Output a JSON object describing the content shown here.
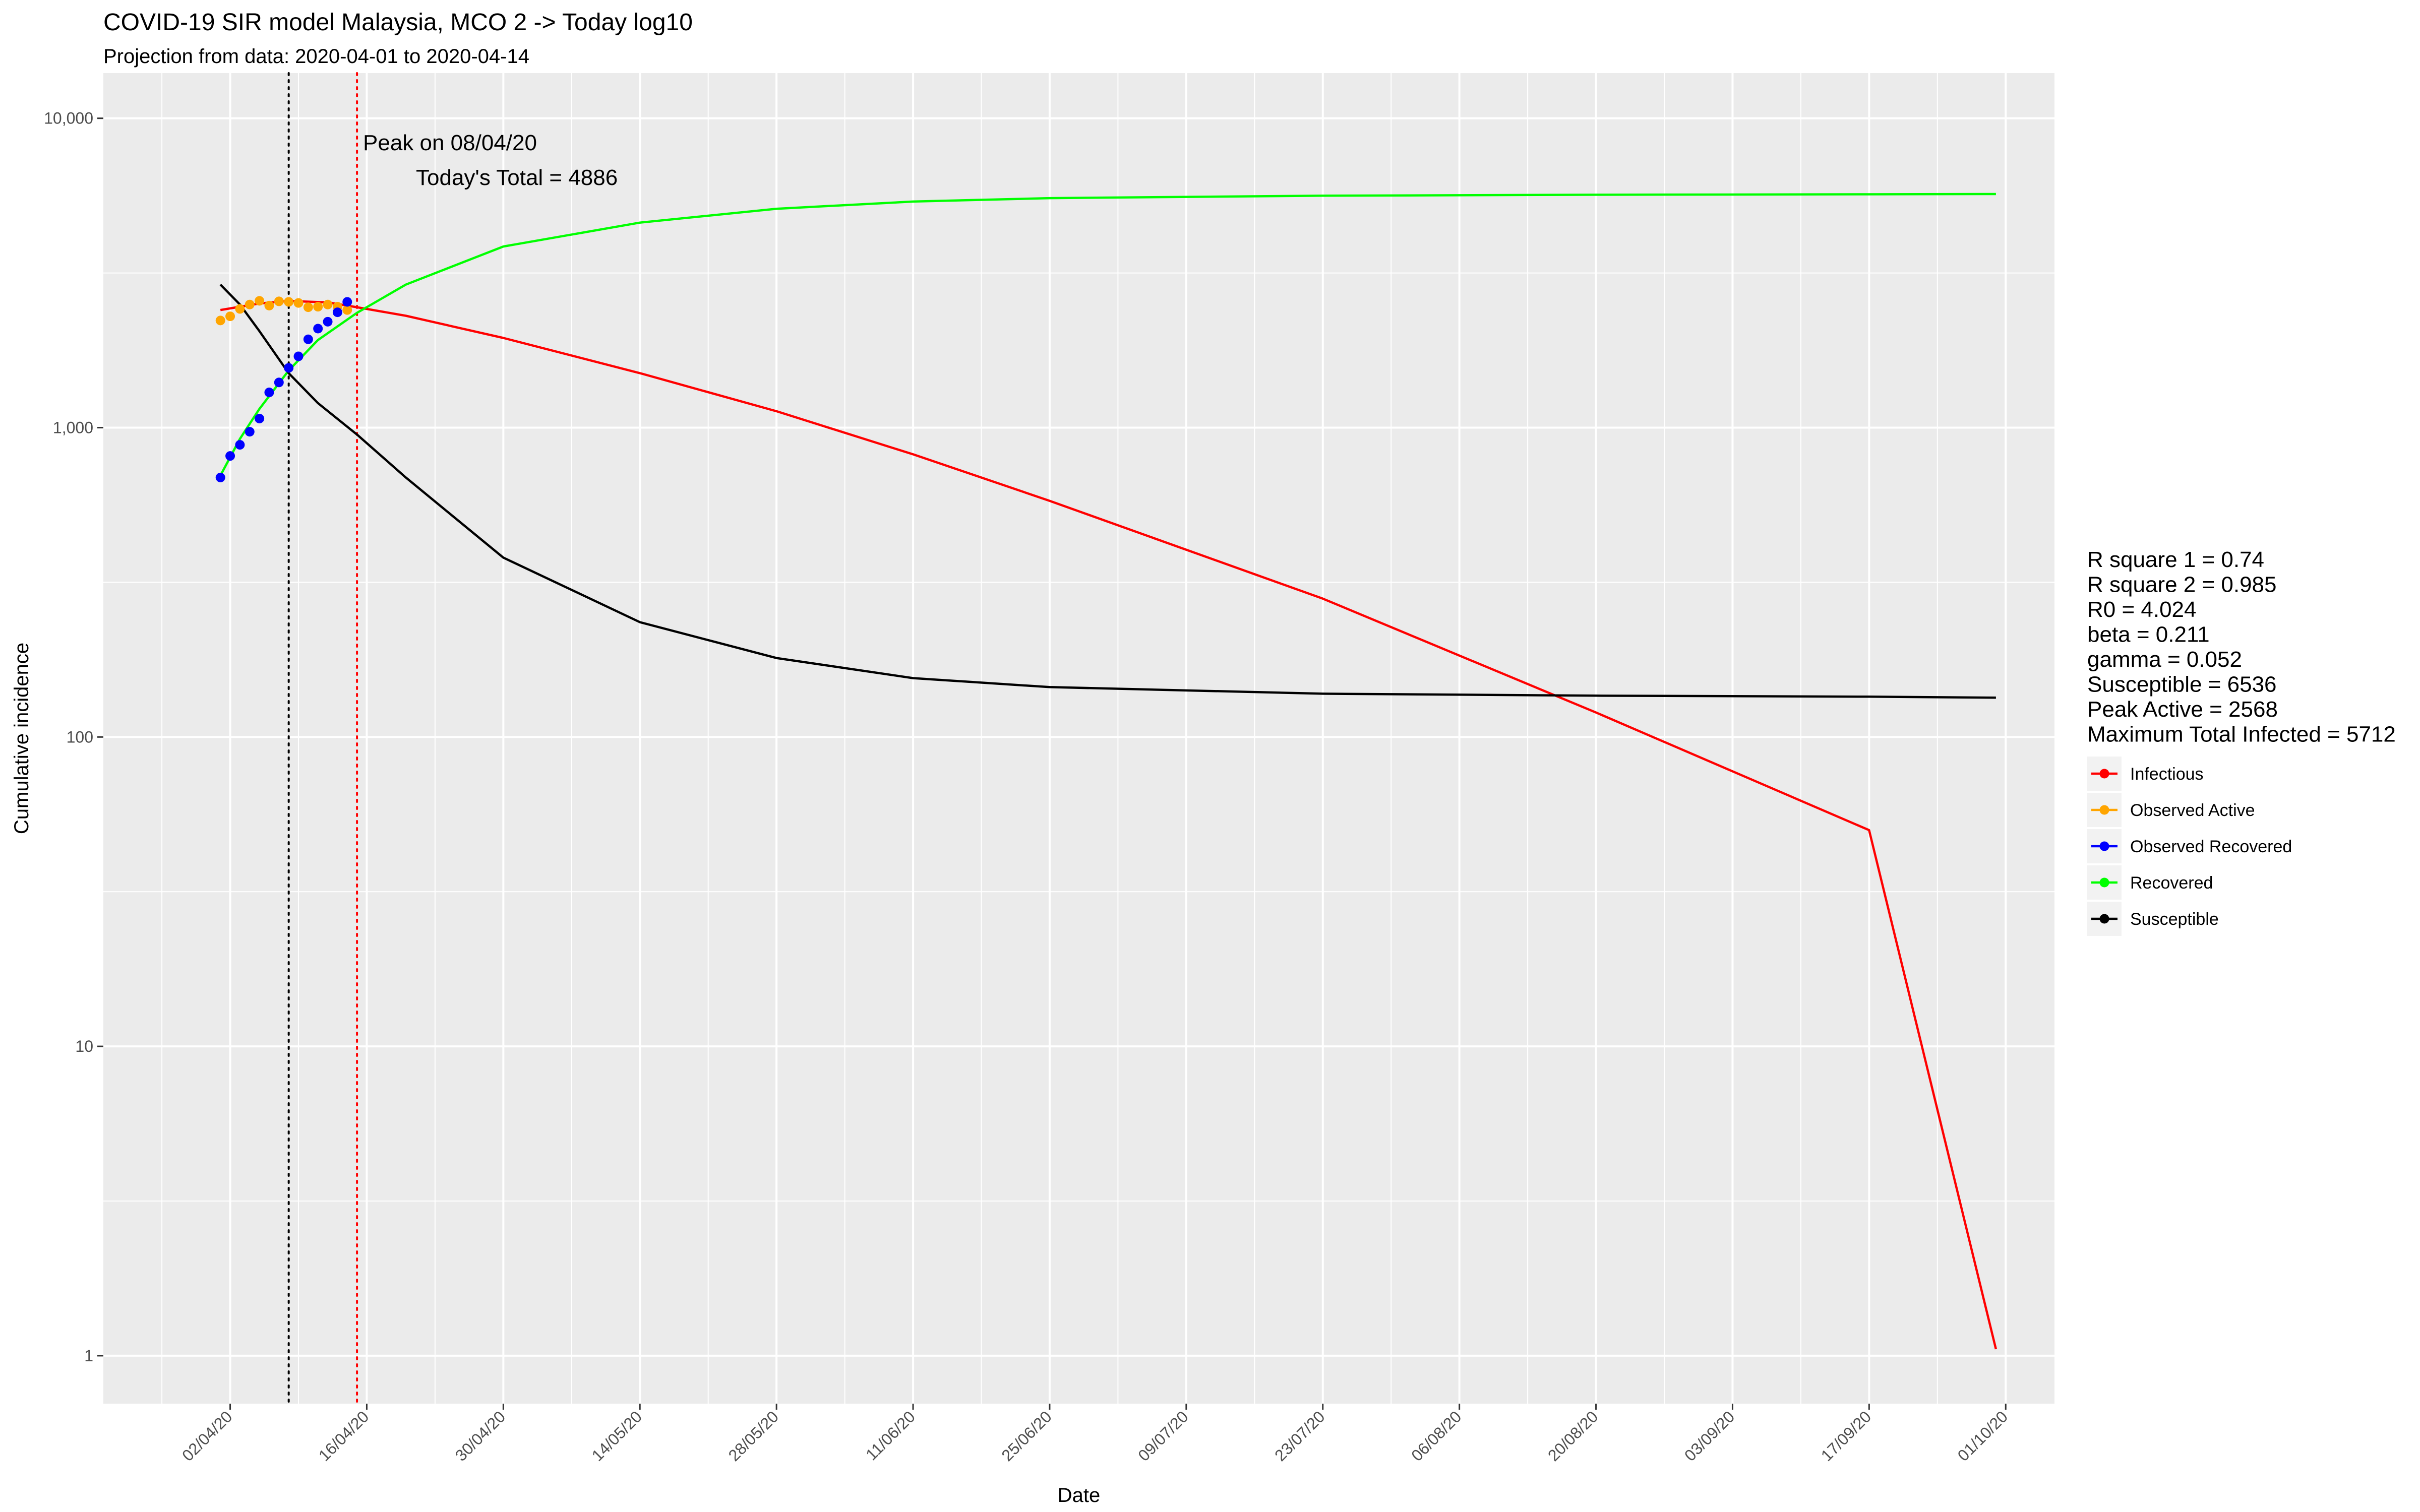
{
  "title": "COVID-19 SIR model Malaysia, MCO 2 -> Today log10",
  "subtitle": "Projection from data: 2020-04-01 to 2020-04-14",
  "annotations": {
    "peak": "Peak on 08/04/20",
    "today_total": "Today's Total = 4886"
  },
  "stats": [
    "R square 1 = 0.74",
    "R square 2 = 0.985",
    "R0 = 4.024",
    "beta = 0.211",
    "gamma = 0.052",
    "Susceptible = 6536",
    "Peak Active = 2568",
    "Maximum Total Infected = 5712"
  ],
  "chart_data": {
    "type": "line",
    "xlabel": "Date",
    "ylabel": "Cumulative incidence",
    "y_scale": "log10",
    "xlim": [
      "2020-03-20",
      "2020-10-06"
    ],
    "ylim": [
      0.7,
      14000
    ],
    "grid": true,
    "legend_position": "right",
    "x_ticks": [
      "2020-04-02",
      "2020-04-16",
      "2020-04-30",
      "2020-05-14",
      "2020-05-28",
      "2020-06-11",
      "2020-06-25",
      "2020-07-09",
      "2020-07-23",
      "2020-08-06",
      "2020-08-20",
      "2020-09-03",
      "2020-09-17",
      "2020-10-01"
    ],
    "x_tick_labels": [
      "02/04/20",
      "16/04/20",
      "30/04/20",
      "14/05/20",
      "28/05/20",
      "11/06/20",
      "25/06/20",
      "09/07/20",
      "23/07/20",
      "06/08/20",
      "20/08/20",
      "03/09/20",
      "17/09/20",
      "01/10/20"
    ],
    "y_ticks": [
      1,
      10,
      100,
      1000,
      10000
    ],
    "y_tick_labels": [
      "1",
      "10",
      "100",
      "1,000",
      "10,000"
    ],
    "vlines": [
      {
        "x": "2020-04-08",
        "color": "#000000",
        "style": "dotted"
      },
      {
        "x": "2020-04-15",
        "color": "#ff0000",
        "style": "dotted"
      }
    ],
    "series": [
      {
        "name": "Infectious",
        "color": "#ff0000",
        "kind": "line",
        "x": [
          "2020-04-01",
          "2020-04-05",
          "2020-04-08",
          "2020-04-12",
          "2020-04-15",
          "2020-04-20",
          "2020-04-30",
          "2020-05-14",
          "2020-05-28",
          "2020-06-11",
          "2020-06-25",
          "2020-07-23",
          "2020-08-20",
          "2020-09-17",
          "2020-09-30"
        ],
        "y": [
          2400,
          2520,
          2568,
          2540,
          2450,
          2300,
          1950,
          1500,
          1130,
          820,
          580,
          280,
          120,
          50,
          1.05
        ]
      },
      {
        "name": "Observed Active",
        "color": "#ffa500",
        "kind": "points",
        "x": [
          "2020-04-01",
          "2020-04-02",
          "2020-04-03",
          "2020-04-04",
          "2020-04-05",
          "2020-04-06",
          "2020-04-07",
          "2020-04-08",
          "2020-04-09",
          "2020-04-10",
          "2020-04-11",
          "2020-04-12",
          "2020-04-13",
          "2020-04-14"
        ],
        "y": [
          2220,
          2290,
          2420,
          2500,
          2570,
          2480,
          2560,
          2550,
          2530,
          2450,
          2460,
          2500,
          2460,
          2400
        ]
      },
      {
        "name": "Observed Recovered",
        "color": "#0000ff",
        "kind": "points",
        "x": [
          "2020-04-01",
          "2020-04-02",
          "2020-04-03",
          "2020-04-04",
          "2020-04-05",
          "2020-04-06",
          "2020-04-07",
          "2020-04-08",
          "2020-04-09",
          "2020-04-10",
          "2020-04-11",
          "2020-04-12",
          "2020-04-13",
          "2020-04-14"
        ],
        "y": [
          690,
          810,
          880,
          970,
          1070,
          1300,
          1400,
          1560,
          1700,
          1930,
          2090,
          2200,
          2360,
          2550
        ]
      },
      {
        "name": "Recovered",
        "color": "#00ff00",
        "kind": "line",
        "x": [
          "2020-04-01",
          "2020-04-03",
          "2020-04-05",
          "2020-04-08",
          "2020-04-11",
          "2020-04-15",
          "2020-04-20",
          "2020-04-30",
          "2020-05-14",
          "2020-05-28",
          "2020-06-11",
          "2020-06-25",
          "2020-07-23",
          "2020-08-20",
          "2020-09-17",
          "2020-09-30"
        ],
        "y": [
          700,
          920,
          1150,
          1530,
          1920,
          2350,
          2900,
          3850,
          4600,
          5100,
          5380,
          5520,
          5620,
          5660,
          5680,
          5690
        ]
      },
      {
        "name": "Susceptible",
        "color": "#000000",
        "kind": "line",
        "x": [
          "2020-04-01",
          "2020-04-03",
          "2020-04-05",
          "2020-04-08",
          "2020-04-11",
          "2020-04-15",
          "2020-04-20",
          "2020-04-30",
          "2020-05-14",
          "2020-05-28",
          "2020-06-11",
          "2020-06-25",
          "2020-07-23",
          "2020-08-20",
          "2020-09-17",
          "2020-09-30"
        ],
        "y": [
          2900,
          2500,
          2050,
          1500,
          1200,
          950,
          690,
          380,
          235,
          180,
          155,
          145,
          138,
          136,
          135,
          134
        ]
      }
    ]
  }
}
